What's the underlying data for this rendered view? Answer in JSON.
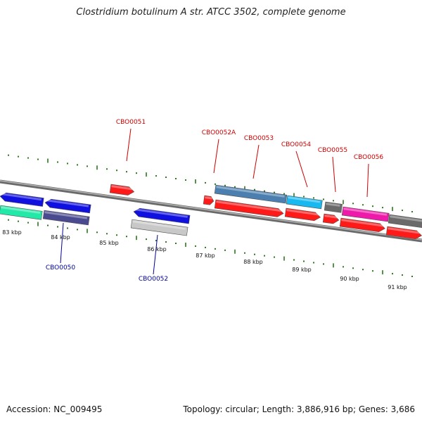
{
  "title": "Clostridium botulinum A str. ATCC 3502, complete genome",
  "footer": {
    "accession": "Accession: NC_009495",
    "summary": "Topology: circular; Length: 3,886,916 bp; Genes: 3,686"
  },
  "axis": {
    "tick_labels": [
      "83 kbp",
      "84 kbp",
      "85 kbp",
      "86 kbp",
      "87 kbp",
      "88 kbp",
      "89 kbp",
      "90 kbp",
      "91 kbp"
    ]
  },
  "gene_labels": {
    "forward": [
      "CBO0051",
      "CBO0052A",
      "CBO0053",
      "CBO0054",
      "CBO0055",
      "CBO0056"
    ],
    "reverse": [
      "CBO0050",
      "CBO0052"
    ]
  },
  "colors": {
    "forward_label": "#cc0000",
    "reverse_label": "#000099",
    "tick": "#2a7a1a",
    "backbone": "#8a8a8a",
    "red_gene": "#ff1a1a",
    "blue_gene": "#1010e0",
    "steel_gene": "#4a7fb0",
    "cyan_gene": "#18b8f0",
    "gray_gene": "#6a6a6a",
    "magenta_gene": "#ee1aaa",
    "green_gene": "#22e8a8",
    "purple_gene": "#4a4a90",
    "silver_gene": "#c8c8c8"
  }
}
